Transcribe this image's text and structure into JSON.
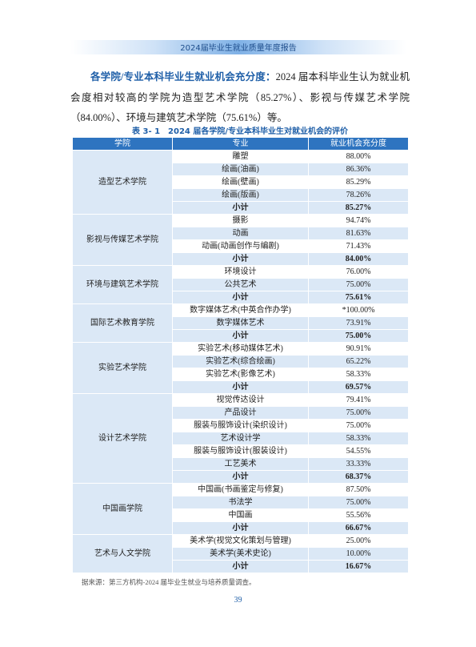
{
  "header": {
    "title": "2024届毕业生就业质量年度报告"
  },
  "paragraph": {
    "lead": "各学院/专业本科毕业生就业机会充分度：",
    "text": "2024 届本科毕业生认为就业机会度相对较高的学院为造型艺术学院（85.27%）、影视与传媒艺术学院（84.00%）、环境与建筑艺术学院（75.61%）等。"
  },
  "table": {
    "caption": "表 3- 1　2024 届各学院/专业本科毕业生对就业机会的评价",
    "header": [
      "学院",
      "专业",
      "就业机会充分度"
    ],
    "groups": [
      {
        "college": "造型艺术学院",
        "rows": [
          [
            "雕塑",
            "88.00%"
          ],
          [
            "绘画(油画)",
            "86.36%"
          ],
          [
            "绘画(壁画)",
            "85.29%"
          ],
          [
            "绘画(版画)",
            "78.26%"
          ]
        ],
        "subtotal": [
          "小计",
          "85.27%"
        ]
      },
      {
        "college": "影视与传媒艺术学院",
        "rows": [
          [
            "摄影",
            "94.74%"
          ],
          [
            "动画",
            "81.63%"
          ],
          [
            "动画(动画创作与编剧)",
            "71.43%"
          ]
        ],
        "subtotal": [
          "小计",
          "84.00%"
        ]
      },
      {
        "college": "环境与建筑艺术学院",
        "rows": [
          [
            "环境设计",
            "76.00%"
          ],
          [
            "公共艺术",
            "75.00%"
          ]
        ],
        "subtotal": [
          "小计",
          "75.61%"
        ]
      },
      {
        "college": "国际艺术教育学院",
        "rows": [
          [
            "数字媒体艺术(中英合作办学)",
            "*100.00%"
          ],
          [
            "数字媒体艺术",
            "73.91%"
          ]
        ],
        "subtotal": [
          "小计",
          "75.00%"
        ]
      },
      {
        "college": "实验艺术学院",
        "rows": [
          [
            "实验艺术(移动媒体艺术)",
            "90.91%"
          ],
          [
            "实验艺术(综合绘画)",
            "65.22%"
          ],
          [
            "实验艺术(影像艺术)",
            "58.33%"
          ]
        ],
        "subtotal": [
          "小计",
          "69.57%"
        ]
      },
      {
        "college": "设计艺术学院",
        "rows": [
          [
            "视觉传达设计",
            "79.41%"
          ],
          [
            "产品设计",
            "75.00%"
          ],
          [
            "服装与服饰设计(染织设计)",
            "75.00%"
          ],
          [
            "艺术设计学",
            "58.33%"
          ],
          [
            "服装与服饰设计(服装设计)",
            "54.55%"
          ],
          [
            "工艺美术",
            "33.33%"
          ]
        ],
        "subtotal": [
          "小计",
          "68.37%"
        ]
      },
      {
        "college": "中国画学院",
        "rows": [
          [
            "中国画(书画鉴定与修复)",
            "87.50%"
          ],
          [
            "书法学",
            "75.00%"
          ],
          [
            "中国画",
            "55.56%"
          ]
        ],
        "subtotal": [
          "小计",
          "66.67%"
        ]
      },
      {
        "college": "艺术与人文学院",
        "rows": [
          [
            "美术学(视觉文化策划与管理)",
            "25.00%"
          ],
          [
            "美术学(美术史论)",
            "10.00%"
          ]
        ],
        "subtotal": [
          "小计",
          "16.67%"
        ]
      }
    ],
    "source": "据来源：第三方机构-2024 届毕业生就业与培养质量调查。"
  },
  "footer": {
    "page": "39"
  }
}
